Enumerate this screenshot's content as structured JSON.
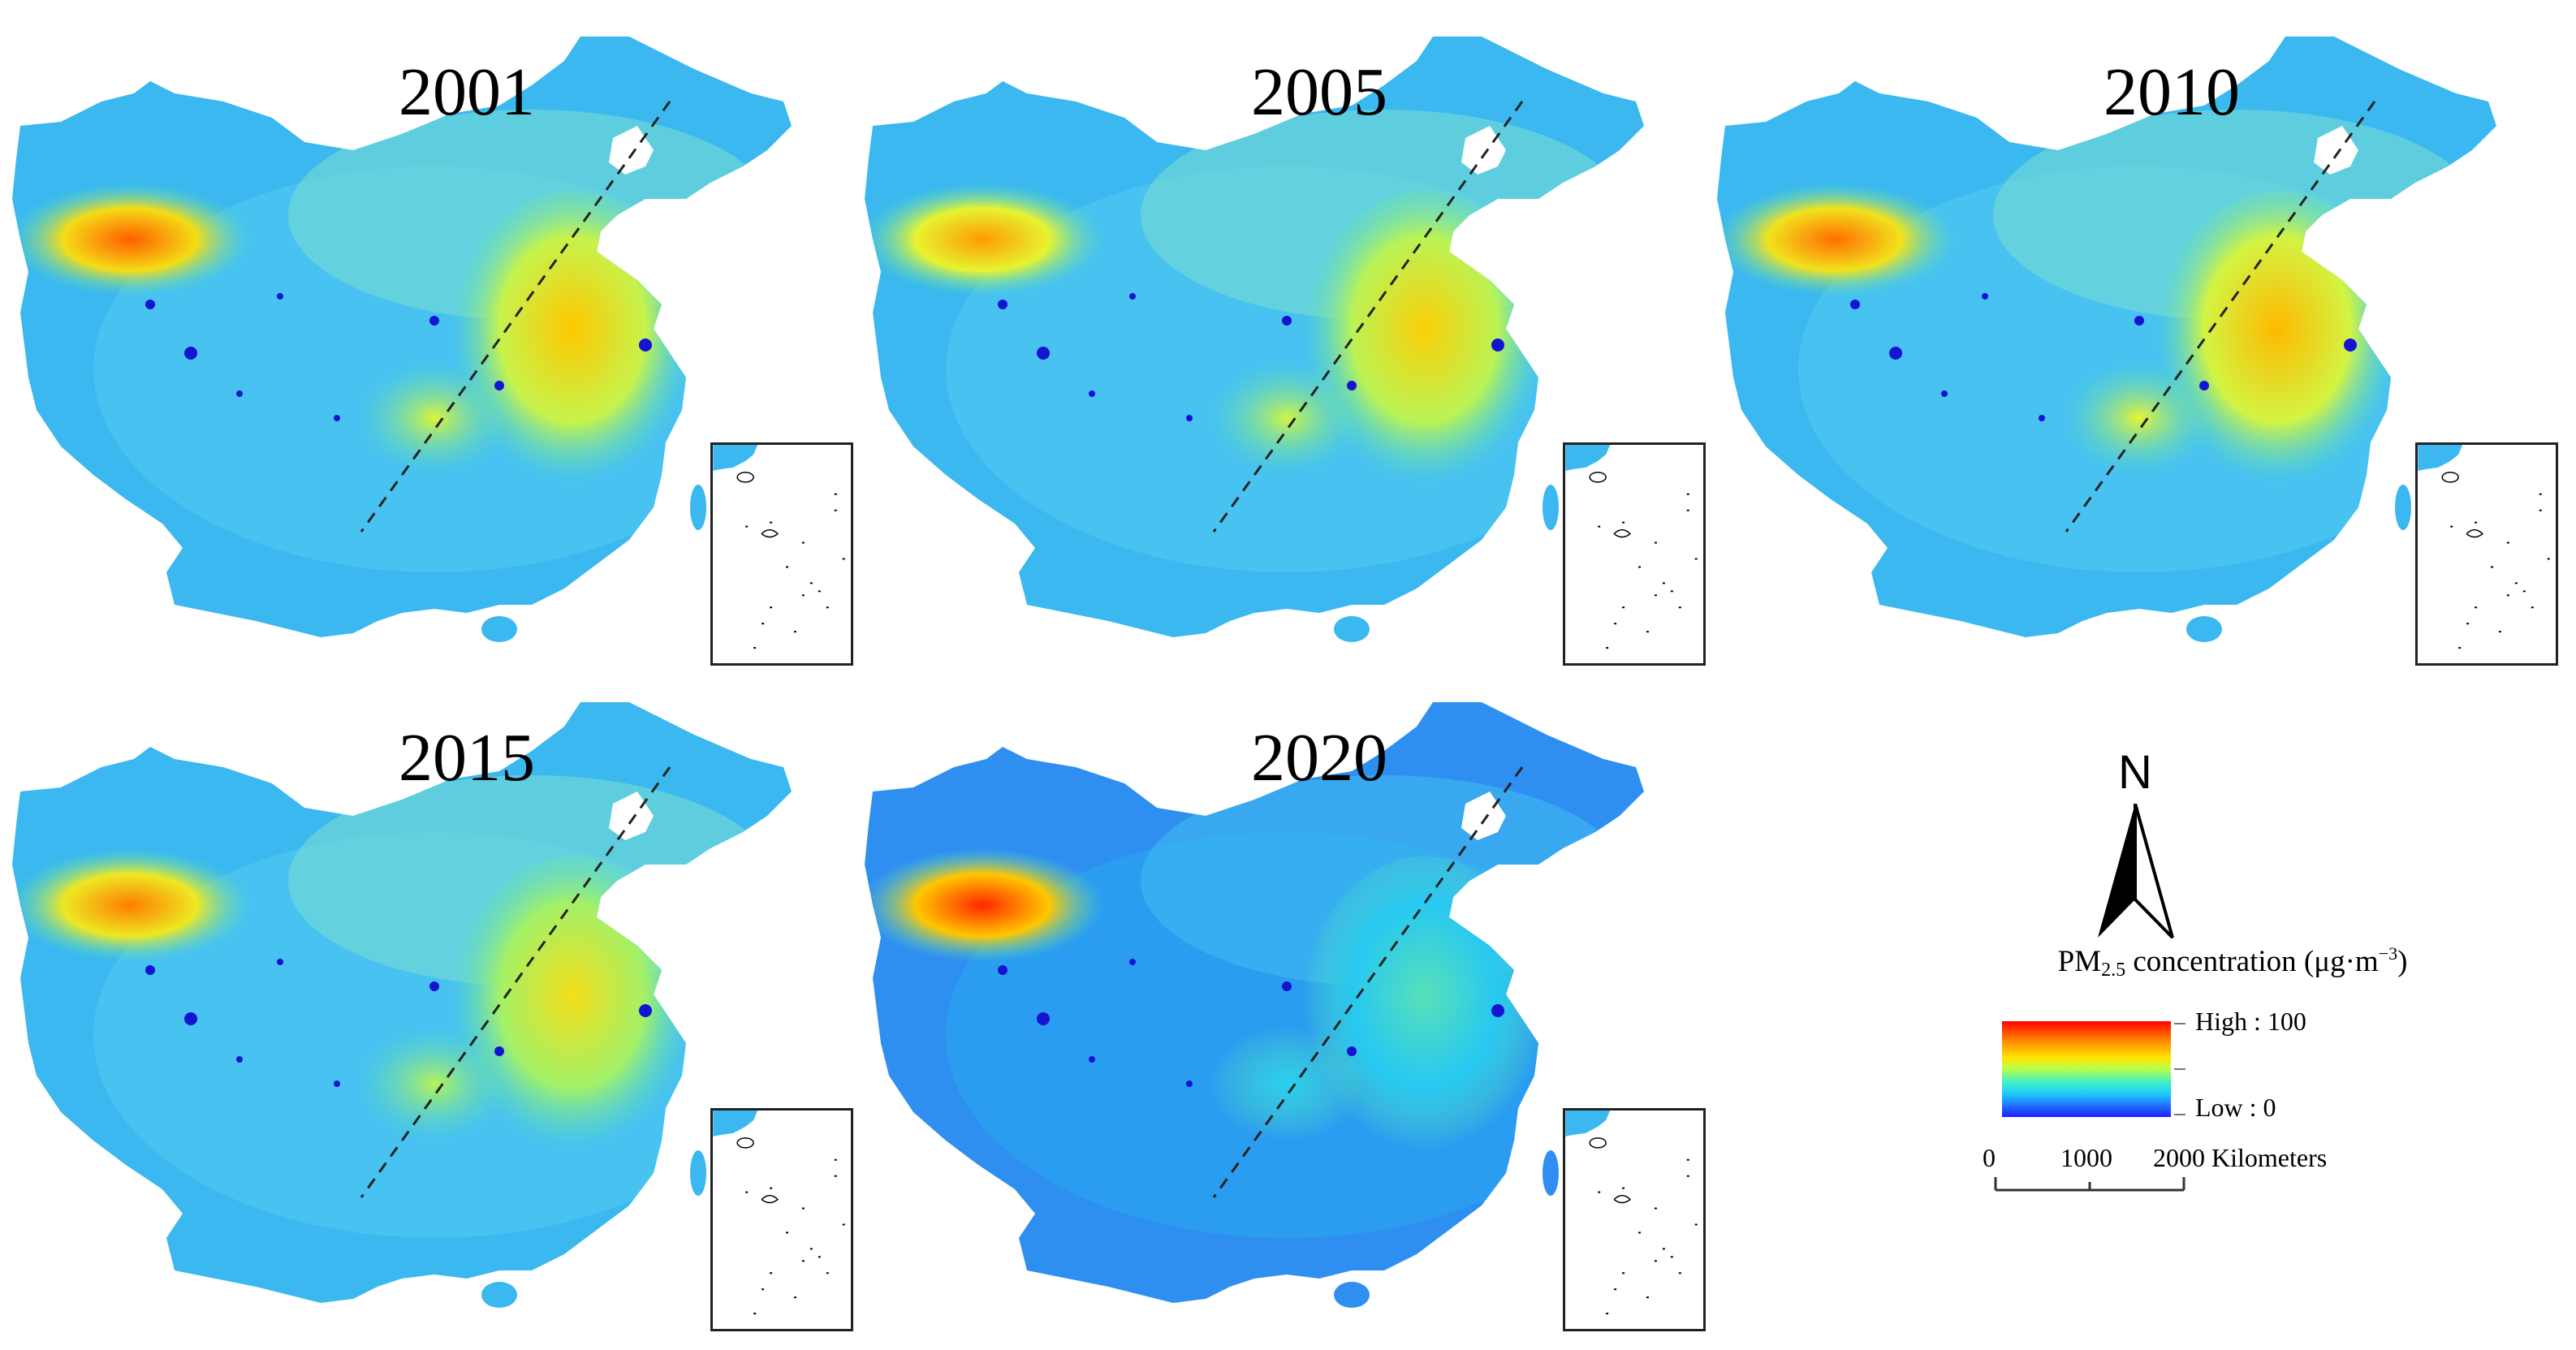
{
  "figure": {
    "panels": [
      {
        "year": "2001",
        "hotspot_intensity": 0.88,
        "east_intensity": 0.74
      },
      {
        "year": "2005",
        "hotspot_intensity": 0.8,
        "east_intensity": 0.72
      },
      {
        "year": "2010",
        "hotspot_intensity": 0.86,
        "east_intensity": 0.76
      },
      {
        "year": "2015",
        "hotspot_intensity": 0.84,
        "east_intensity": 0.68
      },
      {
        "year": "2020",
        "hotspot_intensity": 0.95,
        "east_intensity": 0.42
      }
    ],
    "legend": {
      "north_label": "N",
      "title_prefix": "PM",
      "title_subscript": "2.5",
      "title_suffix": " concentration (μg·m",
      "title_superscript": "−3",
      "title_close": ")",
      "high_label": "High : 100",
      "low_label": "Low : 0",
      "scale_labels": [
        "0",
        "1000",
        "2000 Kilometers"
      ]
    },
    "colors": {
      "high": "#ff0000",
      "mid": "#ffe600",
      "low": "#1e1eff",
      "water": "#1414d2"
    }
  }
}
